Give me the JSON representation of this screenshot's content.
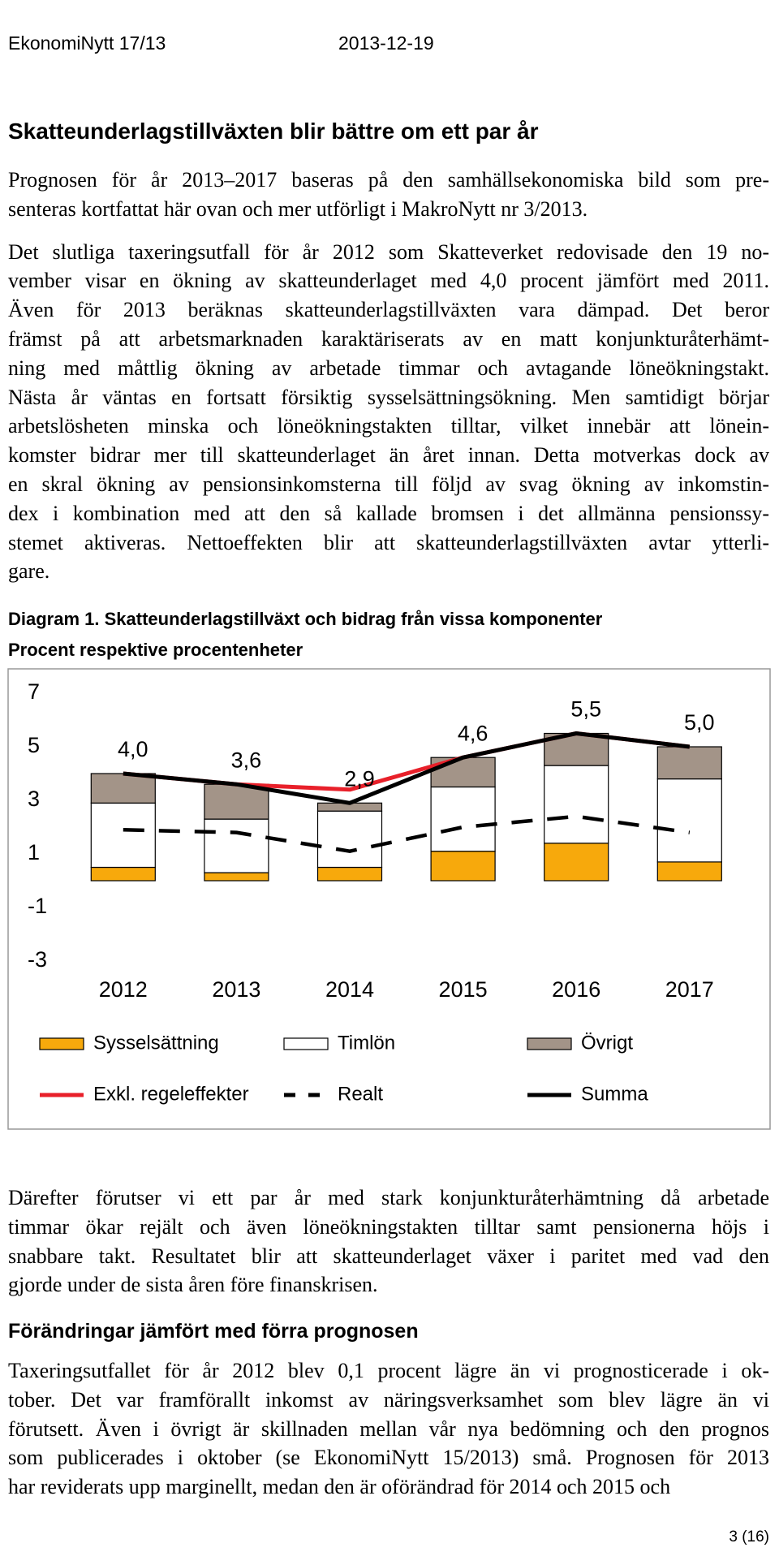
{
  "header": {
    "publication": "EkonomiNytt 17/13",
    "date": "2013-12-19"
  },
  "title": "Skatteunderlagstillväxten blir bättre om ett par år",
  "intro": {
    "paragraphs": [
      [
        "Prognosen för år 2013–2017 baseras på den samhällsekonomiska bild som pre-",
        "senteras kortfattat här ovan och mer utförligt i MakroNytt nr 3/2013."
      ],
      [
        "Det slutliga taxeringsutfall för år 2012 som Skatteverket redovisade den 19 no-",
        "vember visar en ökning av skatteunderlaget med 4,0 procent jämfört med 2011.",
        "Även för 2013 beräknas skatteunderlagstillväxten vara dämpad. Det beror",
        "främst på att arbetsmarknaden karaktäriserats av en matt konjunkturåterhämt-",
        "ning med måttlig ökning av arbetade timmar och avtagande löneökningstakt.",
        "Nästa år väntas en fortsatt försiktig sysselsättningsökning. Men samtidigt börjar",
        "arbetslösheten minska och löneökningstakten tilltar, vilket innebär att lönein-",
        "komster bidrar mer till skatteunderlaget än året innan. Detta motverkas dock av",
        "en skral ökning av pensionsinkomsterna till följd av svag ökning av inkomstin-",
        "dex i kombination med att den så kallade bromsen i det allmänna pensionssy-",
        "stemet aktiveras. Nettoeffekten blir att skatteunderlagstillväxten avtar ytterli-",
        "gare."
      ]
    ]
  },
  "figure": {
    "caption": "Diagram 1. Skatteunderlagstillväxt och bidrag från vissa komponenter",
    "subtitle": "Procent respektive procentenheter"
  },
  "chart_data": {
    "type": "bar",
    "stacked": true,
    "categories": [
      "2012",
      "2013",
      "2014",
      "2015",
      "2016",
      "2017"
    ],
    "ylim": [
      -3,
      7
    ],
    "yticks": [
      -3,
      -1,
      1,
      3,
      5,
      7
    ],
    "grid": false,
    "series": [
      {
        "name": "Sysselsättning",
        "type": "bar",
        "color": "#f7a90c",
        "values": [
          0.5,
          0.3,
          0.5,
          1.1,
          1.4,
          0.7
        ]
      },
      {
        "name": "Timlön",
        "type": "bar",
        "color": "#ffffff",
        "values": [
          2.4,
          2.0,
          2.1,
          2.4,
          2.9,
          3.1
        ]
      },
      {
        "name": "Övrigt",
        "type": "bar",
        "color": "#a39488",
        "values": [
          1.1,
          1.3,
          0.3,
          1.1,
          1.2,
          1.2
        ]
      },
      {
        "name": "Exkl. regeleffekter",
        "type": "line",
        "color": "#e8202a",
        "values": [
          4.0,
          3.6,
          3.4,
          4.6,
          5.5,
          5.0
        ]
      },
      {
        "name": "Realt",
        "type": "line",
        "style": "dashed",
        "color": "#000000",
        "values": [
          1.9,
          1.8,
          1.1,
          2.0,
          2.4,
          1.8
        ]
      },
      {
        "name": "Summa",
        "type": "line",
        "color": "#000000",
        "values": [
          4.0,
          3.6,
          2.9,
          4.6,
          5.5,
          5.0
        ],
        "value_labels": [
          "4,0",
          "3,6",
          "2,9",
          "4,6",
          "5,5",
          "5,0"
        ]
      }
    ]
  },
  "after": {
    "paragraphs": [
      [
        "Därefter förutser vi ett par år med stark konjunkturåterhämtning då arbetade",
        "timmar ökar rejält och även löneökningstakten tilltar samt pensionerna höjs i",
        "snabbare takt. Resultatet blir att skatteunderlaget växer i paritet med vad den",
        "gjorde under de sista åren före finanskrisen."
      ]
    ]
  },
  "section2": {
    "heading": "Förändringar jämfört med förra prognosen",
    "paragraphs": [
      [
        "Taxeringsutfallet för år 2012 blev 0,1 procent lägre än vi prognosticerade i ok-",
        "tober. Det var framförallt inkomst av näringsverksamhet som blev lägre än vi",
        "förutsett. Även i övrigt är skillnaden mellan vår nya bedömning och den prognos",
        "som publicerades i oktober (se EkonomiNytt 15/2013) små. Prognosen för 2013",
        "har reviderats upp marginellt, medan den är oförändrad för 2014 och 2015 och"
      ]
    ]
  },
  "footer": {
    "page": "3 (16)"
  }
}
